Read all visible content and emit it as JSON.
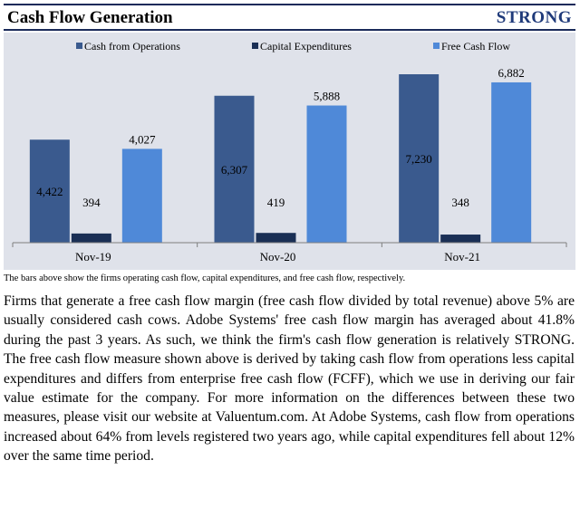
{
  "header": {
    "title": "Cash Flow Generation",
    "rating": "STRONG"
  },
  "chart_data": {
    "type": "bar",
    "categories": [
      "Nov-19",
      "Nov-20",
      "Nov-21"
    ],
    "series": [
      {
        "name": "Cash from Operations",
        "values": [
          4422,
          6307,
          7230
        ],
        "labels": [
          "4,422",
          "6,307",
          "7,230"
        ],
        "color": "#3a5a8e"
      },
      {
        "name": "Capital Expenditures",
        "values": [
          394,
          419,
          348
        ],
        "labels": [
          "394",
          "419",
          "348"
        ],
        "color": "#1a2f55"
      },
      {
        "name": "Free Cash Flow",
        "values": [
          4027,
          5888,
          6882
        ],
        "labels": [
          "4,027",
          "5,888",
          "6,882"
        ],
        "color": "#4f89d8"
      }
    ],
    "ylim": [
      0,
      8000
    ],
    "legend_position": "top",
    "grid": false
  },
  "caption": "The bars above show the firms operating cash flow, capital expenditures, and free cash flow, respectively.",
  "body": "Firms that generate a free cash flow margin (free cash flow divided by total revenue) above 5% are usually considered cash cows. Adobe Systems' free cash flow margin has averaged about 41.8% during the past 3 years. As such, we think the firm's cash flow generation is relatively STRONG. The free cash flow measure shown above is derived by taking cash flow from operations less capital expenditures and differs from enterprise free cash flow (FCFF), which we use in deriving our fair value estimate for the company. For more information on the differences between these two measures, please visit our website at Valuentum.com. At Adobe Systems, cash flow from operations increased about 64% from levels registered two years ago, while capital expenditures fell about 12% over the same time period."
}
